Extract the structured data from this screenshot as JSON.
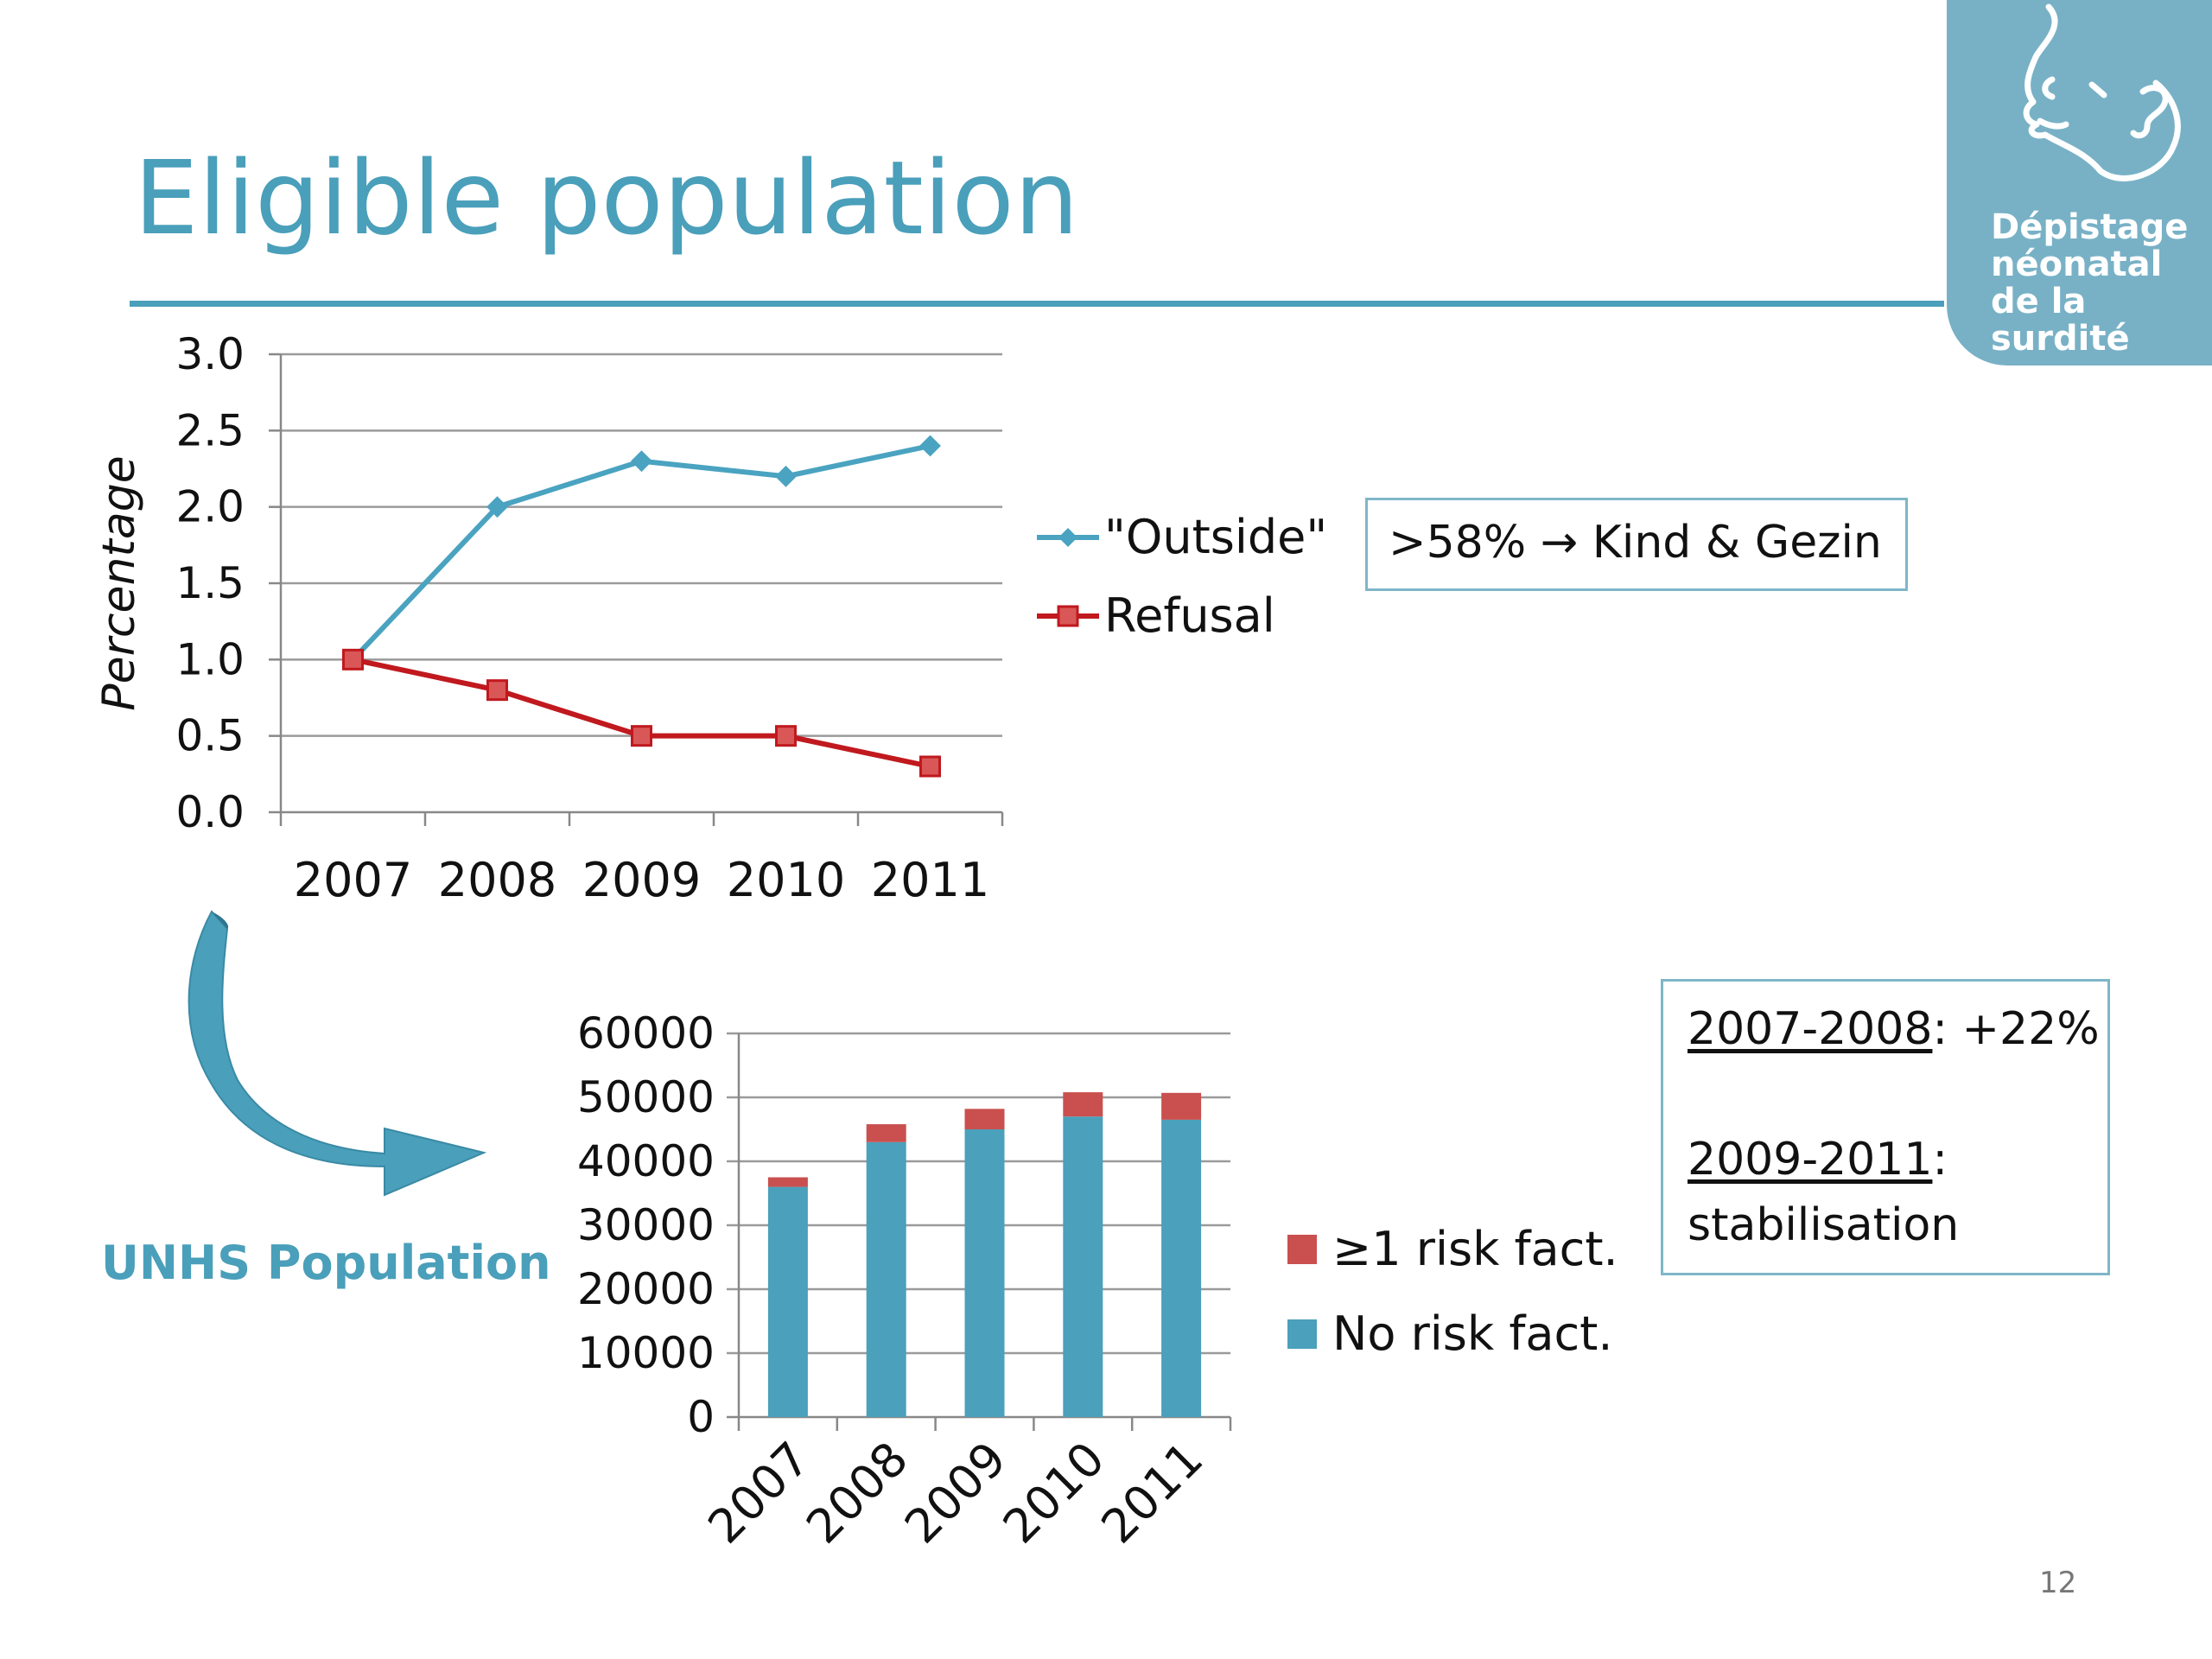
{
  "slide": {
    "title": "Eligible population",
    "page_number": "12",
    "accent_color": "#4a9fba"
  },
  "logo": {
    "text_lines": [
      "Dépistage",
      "néonatal",
      "de la surdité"
    ],
    "icon": "baby-ear-icon",
    "background_color": "#78b1c6"
  },
  "annotations": {
    "kind_gezin": ">58% → Kind & Gezin",
    "growth_period": "2007-2008",
    "growth_value": ": +22%",
    "stable_period": "2009-2011",
    "stable_colon": ":",
    "stable_text": "stabilisation",
    "unhs_label": "UNHS Population",
    "arrow_icon": "curved-arrow-icon"
  },
  "chart_data": [
    {
      "type": "line",
      "ylabel": "Percentage",
      "xlabel": "",
      "x": [
        "2007",
        "2008",
        "2009",
        "2010",
        "2011"
      ],
      "ylim": [
        0,
        3.0
      ],
      "yticks": [
        "0.0",
        "0.5",
        "1.0",
        "1.5",
        "2.0",
        "2.5",
        "3.0"
      ],
      "grid": true,
      "legend_position": "right",
      "series": [
        {
          "name": "\"Outside\"",
          "values": [
            1.0,
            2.0,
            2.3,
            2.2,
            2.4
          ],
          "color": "#4aa3c0",
          "marker": "diamond"
        },
        {
          "name": "Refusal",
          "values": [
            1.0,
            0.8,
            0.5,
            0.5,
            0.3
          ],
          "color": "#c0191e",
          "marker": "square"
        }
      ]
    },
    {
      "type": "bar",
      "stacked": true,
      "categories": [
        "2007",
        "2008",
        "2009",
        "2010",
        "2011"
      ],
      "ylim": [
        0,
        60000
      ],
      "yticks": [
        "0",
        "10000",
        "20000",
        "30000",
        "40000",
        "50000",
        "60000"
      ],
      "grid": true,
      "legend_position": "right",
      "series": [
        {
          "name": "No risk fact.",
          "values": [
            36000,
            43000,
            45000,
            47000,
            46500
          ],
          "color": "#4ba0bb"
        },
        {
          "name": "≥1 risk fact.",
          "values": [
            1500,
            2800,
            3200,
            3800,
            4200
          ],
          "color": "#c9504f"
        }
      ]
    }
  ]
}
